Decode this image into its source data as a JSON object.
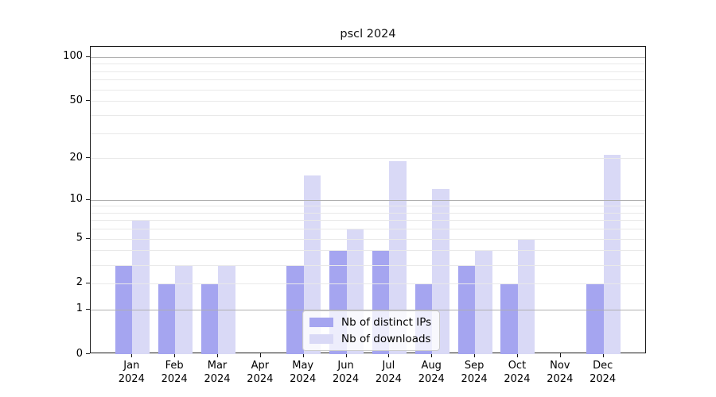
{
  "chart_data": {
    "type": "bar",
    "title": "pscl 2024",
    "categories": [
      "Jan 2024",
      "Feb 2024",
      "Mar 2024",
      "Apr 2024",
      "May 2024",
      "Jun 2024",
      "Jul 2024",
      "Aug 2024",
      "Sep 2024",
      "Oct 2024",
      "Nov 2024",
      "Dec 2024"
    ],
    "series": [
      {
        "name": "Nb of distinct IPs",
        "color": "#a5a5f0",
        "values": [
          3,
          2,
          2,
          0,
          3,
          4,
          4,
          2,
          3,
          2,
          0,
          2
        ]
      },
      {
        "name": "Nb of downloads",
        "color": "#d9d9f6",
        "values": [
          7,
          3,
          3,
          0,
          15,
          6,
          19,
          12,
          4,
          5,
          0,
          21
        ]
      }
    ],
    "y_axis": {
      "scale": "log1p",
      "tick_values": [
        0,
        1,
        2,
        5,
        10,
        20,
        50,
        100
      ],
      "tick_labels": [
        "0",
        "1",
        "2",
        "5",
        "10",
        "20",
        "50",
        "100"
      ],
      "ylim": [
        0,
        120
      ],
      "gridlines_major": [
        1,
        10,
        100
      ],
      "gridlines_minor": [
        2,
        3,
        4,
        5,
        6,
        7,
        8,
        9,
        20,
        30,
        40,
        50,
        60,
        70,
        80,
        90
      ]
    },
    "legend": {
      "entries": [
        "Nb of distinct IPs",
        "Nb of downloads"
      ],
      "position": "lower center"
    },
    "colors": {
      "background": "#ffffff",
      "axis": "#1a1a1a",
      "grid_major": "#b0b0b0",
      "grid_minor": "#e9e9e9",
      "text": "#000000"
    },
    "grid": true
  }
}
